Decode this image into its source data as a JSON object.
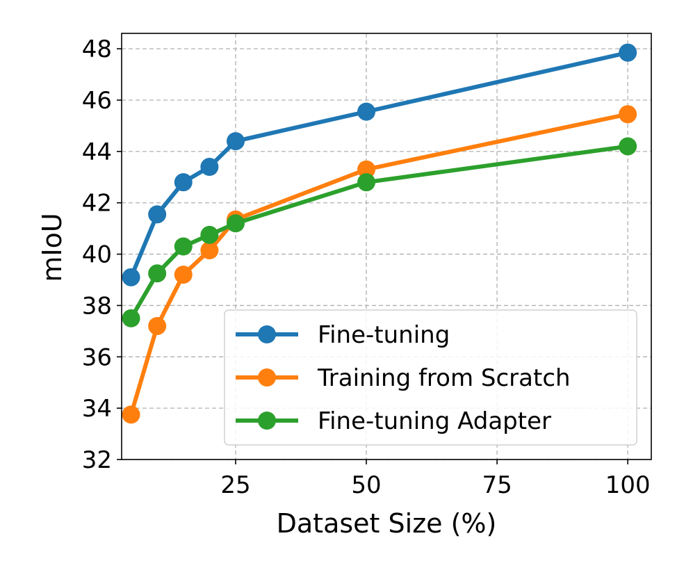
{
  "chart_data": {
    "type": "line",
    "title": "",
    "xlabel": "Dataset Size (%)",
    "ylabel": "mIoU",
    "xlim": [
      3.2,
      104.5
    ],
    "ylim": [
      32,
      48.6
    ],
    "xticks": [
      25,
      50,
      75,
      100
    ],
    "yticks": [
      32,
      34,
      36,
      38,
      40,
      42,
      44,
      46,
      48
    ],
    "grid": true,
    "legend_position": "lower-right",
    "x": [
      5,
      10,
      15,
      20,
      25,
      50,
      100
    ],
    "series": [
      {
        "name": "Fine-tuning",
        "color": "#1f77b4",
        "values": [
          39.1,
          41.55,
          42.8,
          43.4,
          44.4,
          45.55,
          47.85
        ]
      },
      {
        "name": "Training from Scratch",
        "color": "#ff7f0e",
        "values": [
          33.75,
          37.2,
          39.2,
          40.15,
          41.35,
          43.3,
          45.45
        ]
      },
      {
        "name": "Fine-tuning Adapter",
        "color": "#2ca02c",
        "values": [
          37.5,
          39.25,
          40.3,
          40.75,
          41.2,
          42.8,
          44.2
        ]
      }
    ]
  }
}
